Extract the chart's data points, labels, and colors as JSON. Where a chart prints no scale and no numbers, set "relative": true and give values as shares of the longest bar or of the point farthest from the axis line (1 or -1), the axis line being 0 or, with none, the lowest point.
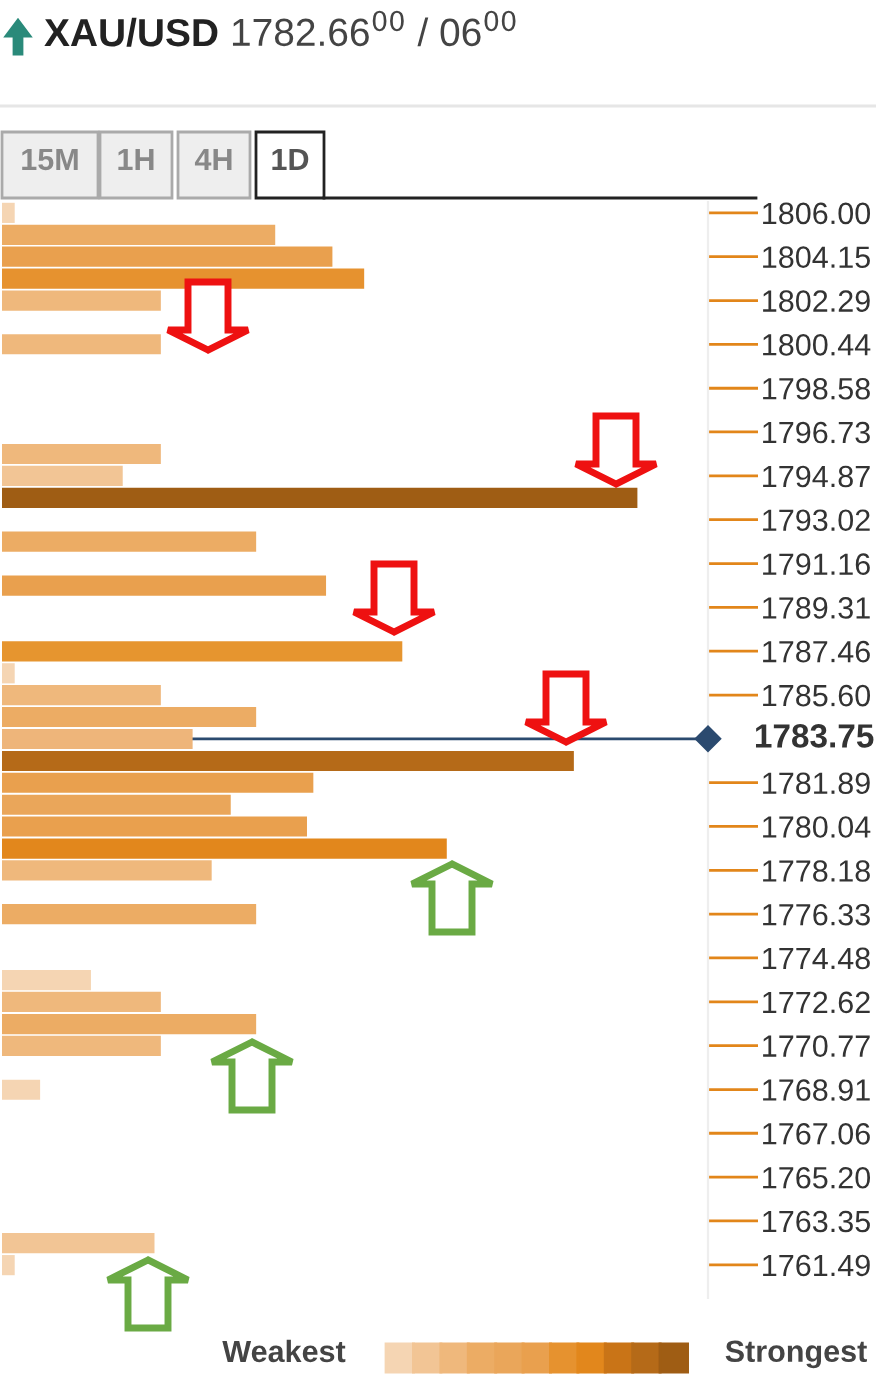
{
  "chart_data": {
    "type": "bar",
    "orientation": "horizontal",
    "relative": true,
    "title": "XAU/USD",
    "subtitle": "1782.66$^{00}$ / 06$^{00}$",
    "x": [
      1806.0,
      1805.07,
      1804.15,
      1803.22,
      1802.29,
      1800.44,
      1795.8,
      1794.87,
      1793.94,
      1792.09,
      1790.23,
      1787.45,
      1786.52,
      1785.6,
      1784.67,
      1783.74,
      1782.81,
      1781.89,
      1780.96,
      1780.04,
      1779.1,
      1778.18,
      1776.33,
      1773.54,
      1772.62,
      1771.68,
      1770.76,
      1768.9,
      1762.41,
      1761.48
    ],
    "values": [
      0.02,
      0.43,
      0.52,
      0.57,
      0.25,
      0.25,
      0.25,
      0.19,
      1.0,
      0.4,
      0.51,
      0.63,
      0.02,
      0.25,
      0.4,
      0.3,
      0.9,
      0.49,
      0.36,
      0.48,
      0.7,
      0.33,
      0.4,
      0.14,
      0.25,
      0.4,
      0.25,
      0.06,
      0.24,
      0.02
    ],
    "colors": [
      "#f5d5b3",
      "#ecac64",
      "#e9a04e",
      "#e6922f",
      "#efb87c",
      "#efb87c",
      "#efb87c",
      "#f2c595",
      "#9f5d14",
      "#ecac64",
      "#e9a04e",
      "#e6952f",
      "#f5d5b3",
      "#efb87c",
      "#ecac64",
      "#eeb57a",
      "#b56a18",
      "#e9a04e",
      "#eaa65a",
      "#e9a04e",
      "#e2871c",
      "#efb87c",
      "#ecac64",
      "#f5d5b3",
      "#efb87c",
      "#ecac64",
      "#efb87c",
      "#f5d5b3",
      "#f2c595",
      "#f5d5b3"
    ],
    "ylim": [
      1760.09,
      1806.46
    ],
    "yticks": [
      {
        "value": 1806.0,
        "label": "1806.00"
      },
      1804.15,
      1802.29,
      1800.44,
      1798.58,
      1796.73,
      1794.87,
      1793.02,
      1791.16,
      1789.31,
      1787.46,
      {
        "value": 1785.6,
        "label": "1785.60"
      },
      1781.89,
      1780.04,
      1778.18,
      1776.33,
      1774.48,
      1772.62,
      1770.77,
      1768.91,
      1767.06,
      {
        "value": 1765.2,
        "label": "1765.20"
      },
      1763.35,
      1761.49
    ],
    "ref_lines": [
      {
        "axis": "y",
        "value": 1783.75,
        "label": "1783.75",
        "color": "#2b4a6f"
      }
    ],
    "annotations": [
      "15M",
      "1H",
      "4H",
      "1D",
      "Weakest",
      "Strongest"
    ]
  }
}
